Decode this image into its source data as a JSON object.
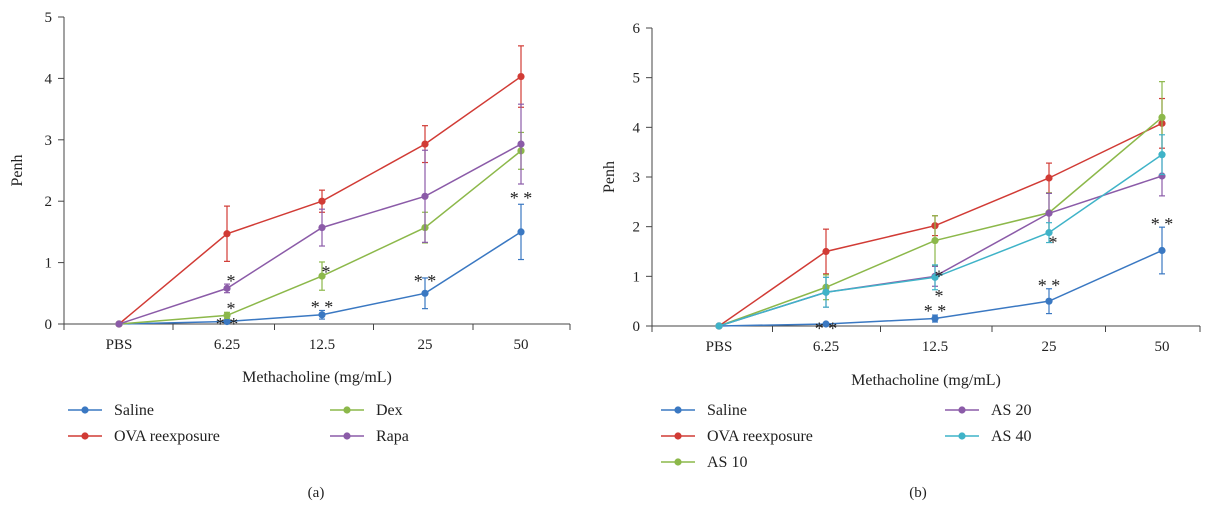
{
  "chart_data": [
    {
      "type": "line",
      "panel_label": "(a)",
      "categories": [
        "PBS",
        "6.25",
        "12.5",
        "25",
        "50"
      ],
      "xlabel": "Methacholine (mg/mL)",
      "ylabel": "Penh",
      "ylim": [
        0,
        5
      ],
      "yticks": [
        "0",
        "1",
        "2",
        "3",
        "4",
        "5"
      ],
      "grid": false,
      "legend_position": "bottom",
      "series": [
        {
          "name": "Saline",
          "color": "#3a78c2",
          "values": [
            0,
            0.04,
            0.15,
            0.5,
            1.5
          ],
          "errors": [
            0,
            0.02,
            0.07,
            0.25,
            0.45
          ]
        },
        {
          "name": "OVA reexposure",
          "color": "#d13b35",
          "values": [
            0,
            1.47,
            2.0,
            2.93,
            4.03
          ],
          "errors": [
            0,
            0.45,
            0.18,
            0.3,
            0.5
          ]
        },
        {
          "name": "Dex",
          "color": "#8cb84a",
          "values": [
            0,
            0.14,
            0.78,
            1.57,
            2.82
          ],
          "errors": [
            0,
            0.05,
            0.23,
            0.25,
            0.3
          ]
        },
        {
          "name": "Rapa",
          "color": "#8b5ba8",
          "values": [
            0,
            0.58,
            1.57,
            2.08,
            2.93
          ],
          "errors": [
            0,
            0.07,
            0.3,
            0.75,
            0.65
          ]
        }
      ],
      "annotations": [
        {
          "text": "*",
          "x": "6.25",
          "y": 0.7
        },
        {
          "text": "*",
          "x": "6.25",
          "y": 0.25
        },
        {
          "text": "* *",
          "x": "6.25",
          "y": 0.0
        },
        {
          "text": "*",
          "x": "12.5",
          "y": 0.85
        },
        {
          "text": "* *",
          "x": "12.5",
          "y": 0.28
        },
        {
          "text": "* *",
          "x": "25",
          "y": 0.7
        },
        {
          "text": "* *",
          "x": "50",
          "y": 2.05
        }
      ]
    },
    {
      "type": "line",
      "panel_label": "(b)",
      "categories": [
        "PBS",
        "6.25",
        "12.5",
        "25",
        "50"
      ],
      "xlabel": "Methacholine (mg/mL)",
      "ylabel": "Penh",
      "ylim": [
        0,
        6
      ],
      "yticks": [
        "0",
        "1",
        "2",
        "3",
        "4",
        "5",
        "6"
      ],
      "grid": false,
      "legend_position": "bottom",
      "series": [
        {
          "name": "Saline",
          "color": "#3a78c2",
          "values": [
            0,
            0.04,
            0.15,
            0.5,
            1.52
          ],
          "errors": [
            0,
            0.02,
            0.07,
            0.25,
            0.47
          ]
        },
        {
          "name": "OVA reexposure",
          "color": "#d13b35",
          "values": [
            0,
            1.5,
            2.02,
            2.98,
            4.08
          ],
          "errors": [
            0,
            0.45,
            0.2,
            0.3,
            0.5
          ]
        },
        {
          "name": "AS 10",
          "color": "#8cb84a",
          "values": [
            0,
            0.78,
            1.72,
            2.28,
            4.2
          ],
          "errors": [
            0,
            0.25,
            0.5,
            0.4,
            0.72
          ]
        },
        {
          "name": "AS 20",
          "color": "#8b5ba8",
          "values": [
            0,
            0.68,
            1.0,
            2.27,
            3.02
          ],
          "errors": [
            0,
            0.3,
            0.2,
            0.4,
            0.4
          ]
        },
        {
          "name": "AS 40",
          "color": "#3fb3c8",
          "values": [
            0,
            0.68,
            0.98,
            1.88,
            3.45
          ],
          "errors": [
            0,
            0.3,
            0.25,
            0.2,
            0.4
          ]
        }
      ],
      "annotations": [
        {
          "text": "* *",
          "x": "6.25",
          "y": -0.05
        },
        {
          "text": "*",
          "x": "12.5",
          "y": 1.0
        },
        {
          "text": "*",
          "x": "12.5",
          "y": 0.6
        },
        {
          "text": "* *",
          "x": "12.5",
          "y": 0.3
        },
        {
          "text": "*",
          "x": "25",
          "y": 1.68
        },
        {
          "text": "* *",
          "x": "25",
          "y": 0.82
        },
        {
          "text": "* *",
          "x": "50",
          "y": 2.05
        }
      ]
    }
  ]
}
